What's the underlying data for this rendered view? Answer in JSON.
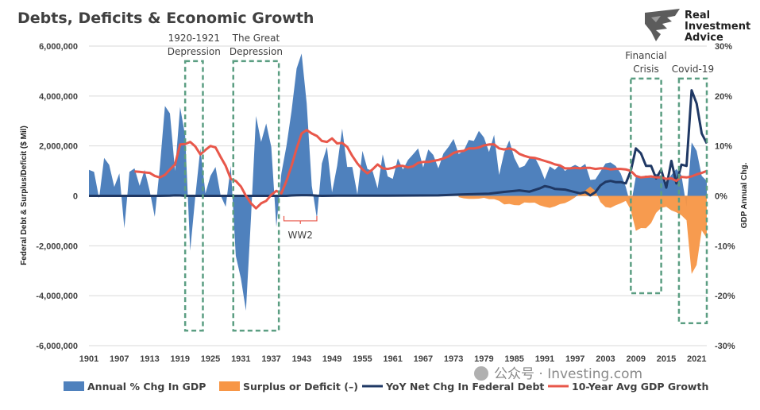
{
  "chart_data": {
    "type": "area",
    "title": "Debts, Deficits & Economic Growth",
    "ylabel_left": "Federal Debt & Surplus/Deficit ($ Mil)",
    "ylabel_right": "GDP Annual Chg.",
    "ylim_left": [
      -6000000,
      6000000
    ],
    "ylim_right": [
      -30,
      30
    ],
    "left_ticks": [
      "6,000,000",
      "4,000,000",
      "2,000,000",
      "0",
      "-2,000,000",
      "-4,000,000",
      "-6,000,000"
    ],
    "right_ticks": [
      "30%",
      "20%",
      "10%",
      "0%",
      "-10%",
      "-20%",
      "-30%"
    ],
    "x_ticks": [
      "1901",
      "1907",
      "1913",
      "1919",
      "1925",
      "1931",
      "1937",
      "1943",
      "1949",
      "1955",
      "1961",
      "1967",
      "1973",
      "1979",
      "1985",
      "1991",
      "1997",
      "2003",
      "2009",
      "2015",
      "2021"
    ],
    "grid": true,
    "legend_position": "bottom",
    "years_start": 1901,
    "series": [
      {
        "name": "Annual % Chg In GDP",
        "type": "area",
        "axis": "right",
        "color": "#4f81bd",
        "values": [
          5.2,
          4.8,
          -0.5,
          7.6,
          6.2,
          1.8,
          4.5,
          -6.5,
          4.8,
          5.5,
          2.0,
          5.2,
          1.0,
          -4.2,
          5.8,
          18.0,
          16.5,
          5.0,
          17.8,
          12.0,
          -11.0,
          -0.2,
          9.5,
          0.5,
          4.0,
          5.8,
          0.1,
          -2.2,
          6.0,
          -12.0,
          -16.5,
          -23.0,
          -4.2,
          16.0,
          10.8,
          14.5,
          9.8,
          -6.2,
          4.5,
          10.0,
          17.0,
          25.5,
          28.5,
          18.5,
          2.0,
          -4.5,
          6.5,
          9.8,
          0.7,
          6.0,
          13.5,
          5.8,
          5.8,
          0.3,
          9.0,
          5.4,
          5.0,
          1.5,
          8.3,
          3.9,
          3.4,
          7.5,
          5.3,
          7.2,
          8.3,
          9.5,
          5.7,
          9.3,
          8.2,
          5.5,
          8.5,
          9.8,
          11.4,
          8.4,
          9.0,
          11.2,
          11.0,
          13.0,
          11.7,
          8.8,
          12.2,
          4.2,
          8.7,
          11.1,
          7.6,
          5.6,
          6.0,
          7.6,
          7.8,
          5.8,
          3.3,
          5.9,
          5.2,
          6.3,
          5.0,
          5.7,
          6.2,
          5.7,
          6.4,
          3.2,
          3.3,
          4.9,
          6.5,
          6.7,
          6.0,
          4.5,
          1.8,
          -2.0,
          3.9,
          3.7,
          4.1,
          3.6,
          4.4,
          4.0,
          2.7,
          4.2,
          5.4,
          4.1,
          -2.2,
          10.7,
          9.0,
          4.0,
          3.0
        ]
      },
      {
        "name": "Surplus or Deficit (–)",
        "type": "area",
        "axis": "left",
        "color": "#f79646",
        "values": {
          "1974": -50000,
          "1975": -100000,
          "1976": -120000,
          "1977": -120000,
          "1978": -110000,
          "1979": -80000,
          "1980": -130000,
          "1981": -130000,
          "1982": -200000,
          "1983": -340000,
          "1984": -320000,
          "1985": -370000,
          "1986": -380000,
          "1987": -260000,
          "1988": -280000,
          "1989": -270000,
          "1990": -380000,
          "1991": -440000,
          "1992": -480000,
          "1993": -420000,
          "1994": -330000,
          "1995": -290000,
          "1996": -190000,
          "1997": -60000,
          "1998": 120000,
          "1999": 220000,
          "2000": 370000,
          "2001": 200000,
          "2002": -250000,
          "2003": -450000,
          "2004": -480000,
          "2005": -380000,
          "2006": -300000,
          "2007": -200000,
          "2008": -560000,
          "2009": -1400000,
          "2010": -1290000,
          "2011": -1300000,
          "2012": -1090000,
          "2013": -680000,
          "2014": -480000,
          "2015": -440000,
          "2016": -580000,
          "2017": -660000,
          "2018": -780000,
          "2019": -980000,
          "2020": -3130000,
          "2021": -2770000,
          "2022": -1380000,
          "2023": -1700000
        }
      },
      {
        "name": "YoY Net Chg In Federal Debt",
        "type": "line",
        "axis": "left",
        "color": "#1f3864",
        "values": {
          "1901": 0,
          "1915": 0,
          "1917": 10000,
          "1918": 20000,
          "1919": 15000,
          "1920": 0,
          "1940": 0,
          "1941": 15000,
          "1942": 25000,
          "1943": 30000,
          "1944": 30000,
          "1945": 25000,
          "1946": 10000,
          "1947": 0,
          "1950": 5000,
          "1960": 5000,
          "1970": 20000,
          "1975": 60000,
          "1980": 90000,
          "1983": 160000,
          "1986": 220000,
          "1988": 170000,
          "1990": 300000,
          "1991": 390000,
          "1992": 350000,
          "1993": 280000,
          "1995": 250000,
          "1997": 150000,
          "1998": 100000,
          "1999": 150000,
          "2000": 20000,
          "2001": 150000,
          "2002": 420000,
          "2003": 560000,
          "2004": 600000,
          "2005": 550000,
          "2006": 550000,
          "2007": 500000,
          "2008": 1000000,
          "2009": 1900000,
          "2010": 1700000,
          "2011": 1200000,
          "2012": 1200000,
          "2013": 700000,
          "2014": 1050000,
          "2015": 330000,
          "2016": 1400000,
          "2017": 500000,
          "2018": 1250000,
          "2019": 1200000,
          "2020": 4230000,
          "2021": 3700000,
          "2022": 2500000,
          "2023": 2100000
        }
      },
      {
        "name": "10-Year Avg GDP Growth",
        "type": "line",
        "axis": "right",
        "color": "#e8574a",
        "values": {
          "1910": 4.9,
          "1911": 4.8,
          "1912": 4.7,
          "1913": 4.6,
          "1914": 4.0,
          "1915": 3.7,
          "1916": 4.2,
          "1917": 5.3,
          "1918": 6.3,
          "1919": 10.3,
          "1920": 10.4,
          "1921": 10.8,
          "1922": 9.9,
          "1923": 8.3,
          "1924": 9.2,
          "1925": 10.0,
          "1926": 9.7,
          "1927": 7.8,
          "1928": 6.0,
          "1929": 3.4,
          "1930": 3.0,
          "1931": 1.9,
          "1932": 0.0,
          "1933": -1.5,
          "1934": -2.5,
          "1935": -1.5,
          "1936": -1.0,
          "1937": 0.2,
          "1938": 1.0,
          "1939": 0.5,
          "1940": 3.0,
          "1941": 6.0,
          "1942": 9.5,
          "1943": 12.5,
          "1944": 13.2,
          "1945": 12.5,
          "1946": 12.0,
          "1947": 11.0,
          "1948": 10.8,
          "1949": 11.5,
          "1950": 10.5,
          "1951": 10.6,
          "1952": 9.8,
          "1953": 8.0,
          "1954": 6.5,
          "1955": 5.3,
          "1956": 4.5,
          "1957": 5.3,
          "1958": 6.3,
          "1959": 5.5,
          "1960": 5.4,
          "1961": 5.6,
          "1962": 6.0,
          "1963": 6.0,
          "1964": 5.7,
          "1965": 5.9,
          "1966": 6.6,
          "1967": 6.8,
          "1968": 6.8,
          "1969": 7.0,
          "1970": 7.2,
          "1971": 7.5,
          "1972": 7.9,
          "1973": 8.6,
          "1974": 8.9,
          "1975": 9.0,
          "1976": 9.5,
          "1977": 9.5,
          "1978": 9.7,
          "1979": 10.1,
          "1980": 10.3,
          "1981": 10.3,
          "1982": 9.5,
          "1983": 9.3,
          "1984": 9.5,
          "1985": 9.2,
          "1986": 8.4,
          "1987": 8.0,
          "1988": 7.7,
          "1989": 7.6,
          "1990": 7.3,
          "1991": 7.0,
          "1992": 6.7,
          "1993": 6.3,
          "1994": 6.1,
          "1995": 5.5,
          "1996": 5.5,
          "1997": 5.6,
          "1998": 5.5,
          "1999": 5.6,
          "2000": 5.6,
          "2001": 5.4,
          "2002": 5.5,
          "2003": 5.5,
          "2004": 5.3,
          "2005": 5.4,
          "2006": 5.4,
          "2007": 5.3,
          "2008": 5.0,
          "2009": 4.0,
          "2010": 3.7,
          "2011": 3.8,
          "2012": 3.9,
          "2013": 3.7,
          "2014": 3.7,
          "2015": 3.4,
          "2016": 3.5,
          "2017": 3.0,
          "2018": 3.8,
          "2019": 3.7,
          "2020": 3.9,
          "2021": 4.3,
          "2022": 4.6,
          "2023": 5.0
        }
      }
    ],
    "annotations": [
      {
        "lines": [
          "1920-1921",
          "Depression"
        ],
        "x_range": [
          1920,
          1923.5
        ],
        "y_range": [
          -27,
          27
        ]
      },
      {
        "lines": [
          "The Great",
          "Depression"
        ],
        "x_range": [
          1929.5,
          1938.5
        ],
        "y_range": [
          -27,
          27
        ]
      },
      {
        "lines": [
          "Financial",
          "Crisis"
        ],
        "x_range": [
          2008,
          2014
        ],
        "y_range": [
          -19.5,
          23.5
        ]
      },
      {
        "lines": [
          "Covid-19"
        ],
        "x_range": [
          2017.5,
          2023
        ],
        "y_range": [
          -25.5,
          23.5
        ]
      }
    ],
    "bracket_label": {
      "text": "WW2",
      "x_range": [
        1939.5,
        1946
      ],
      "y": -5
    }
  },
  "logo": {
    "line1": "Real",
    "line2": "Investment",
    "line3": "Advice"
  },
  "watermark": "公众号 · Investing.com"
}
